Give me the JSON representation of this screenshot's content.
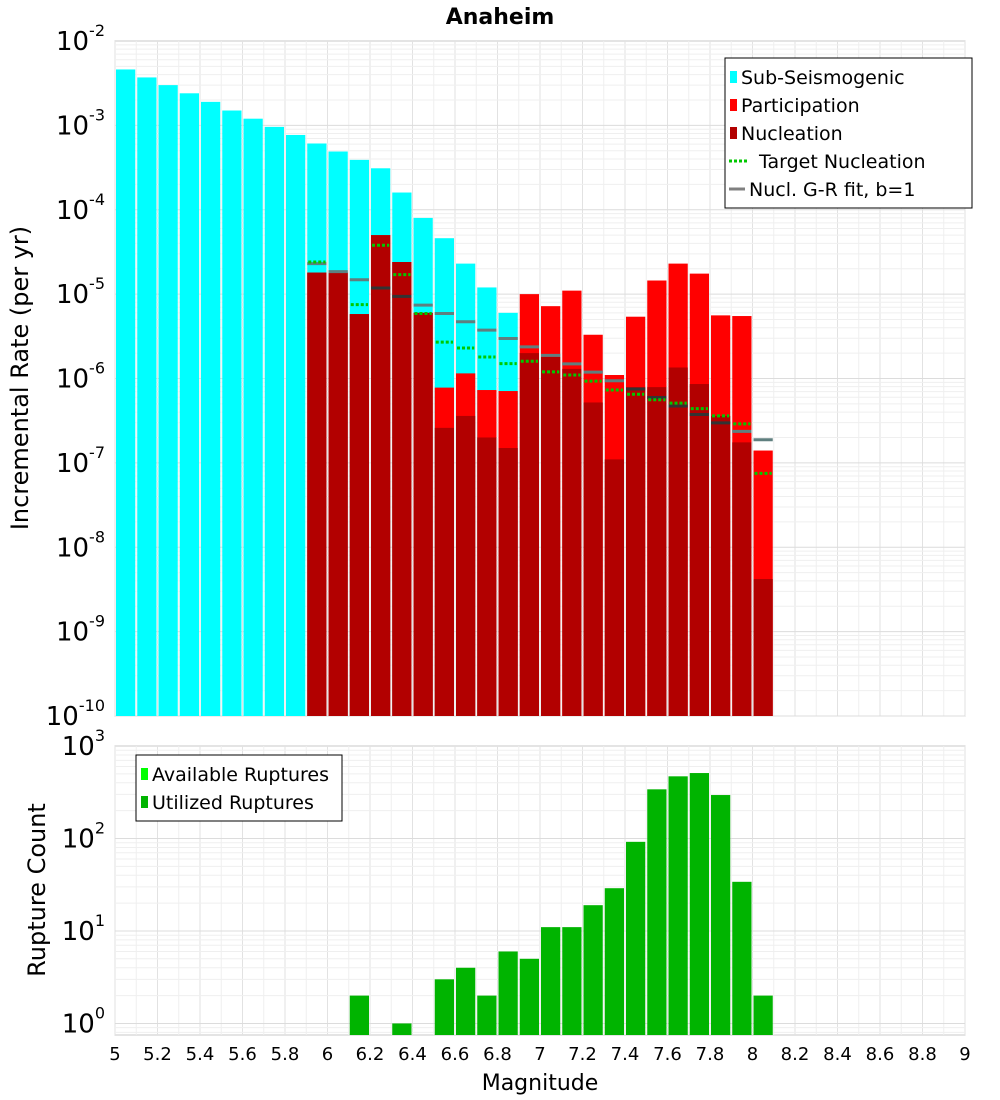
{
  "title": "Anaheim",
  "chart_data": [
    {
      "type": "bar",
      "title": "Anaheim",
      "xlabel": "",
      "ylabel": "Incremental Rate (per yr)",
      "xlim": [
        5,
        9
      ],
      "ylim": [
        1e-10,
        0.01
      ],
      "yscale": "log",
      "grid": true,
      "legend_position": "top-right",
      "y_ticks": [
        {
          "base": "10",
          "exp": "-10"
        },
        {
          "base": "10",
          "exp": "-9"
        },
        {
          "base": "10",
          "exp": "-8"
        },
        {
          "base": "10",
          "exp": "-7"
        },
        {
          "base": "10",
          "exp": "-6"
        },
        {
          "base": "10",
          "exp": "-5"
        },
        {
          "base": "10",
          "exp": "-4"
        },
        {
          "base": "10",
          "exp": "-3"
        },
        {
          "base": "10",
          "exp": "-2"
        }
      ],
      "legend": [
        {
          "label": "Sub-Seismogenic",
          "color": "#00ffff",
          "kind": "square"
        },
        {
          "label": "Participation",
          "color": "#ff0000",
          "kind": "square"
        },
        {
          "label": "Nucleation",
          "color": "#b20000",
          "kind": "square"
        },
        {
          "label": "Target Nucleation",
          "color": "#00c800",
          "kind": "dotted"
        },
        {
          "label": "Nucl. G-R fit, b=1",
          "color": "#808080",
          "kind": "line"
        }
      ],
      "bin_width": 0.1,
      "series": [
        {
          "name": "Sub-Seismogenic",
          "color": "#00ffff",
          "x": [
            5.05,
            5.15,
            5.25,
            5.35,
            5.45,
            5.55,
            5.65,
            5.75,
            5.85,
            5.95,
            6.05,
            6.15,
            6.25,
            6.35,
            6.45,
            6.55,
            6.65,
            6.75,
            6.85
          ],
          "values": [
            0.0046,
            0.0037,
            0.003,
            0.0024,
            0.0019,
            0.0015,
            0.0012,
            0.00096,
            0.00077,
            0.00061,
            0.00049,
            0.00039,
            0.00031,
            0.00016,
            8e-05,
            4.6e-05,
            2.3e-05,
            1.2e-05,
            6e-06
          ]
        },
        {
          "name": "Participation",
          "color": "#ff0000",
          "x": [
            5.95,
            6.05,
            6.15,
            6.25,
            6.35,
            6.45,
            6.55,
            6.65,
            6.75,
            6.85,
            6.95,
            7.05,
            7.15,
            7.25,
            7.35,
            7.45,
            7.55,
            7.65,
            7.75,
            7.85,
            7.95,
            8.05
          ],
          "values": [
            1.8e-05,
            1.8e-05,
            5.8e-06,
            5e-05,
            2.4e-05,
            6e-06,
            7.8e-07,
            1.15e-06,
            7.3e-07,
            7.1e-07,
            1e-05,
            7.2e-06,
            1.1e-05,
            3.3e-06,
            1.1e-06,
            5.4e-06,
            1.45e-05,
            2.3e-05,
            1.75e-05,
            5.6e-06,
            5.5e-06,
            1.4e-07
          ]
        },
        {
          "name": "Nucleation",
          "color": "#b20000",
          "x": [
            5.95,
            6.05,
            6.15,
            6.25,
            6.35,
            6.45,
            6.55,
            6.65,
            6.75,
            6.85,
            6.95,
            7.05,
            7.15,
            7.25,
            7.35,
            7.45,
            7.55,
            7.65,
            7.75,
            7.85,
            7.95,
            8.05
          ],
          "values": [
            1.8e-05,
            1.8e-05,
            5.8e-06,
            5e-05,
            2.4e-05,
            6e-06,
            2.6e-07,
            3.6e-07,
            2e-07,
            1.5e-07,
            2e-06,
            1.8e-06,
            1.3e-06,
            5.2e-07,
            1.1e-07,
            7.9e-07,
            7.9e-07,
            1.35e-06,
            8.6e-07,
            3.6e-07,
            1.75e-07,
            4.2e-09
          ]
        },
        {
          "name": "Target Nucleation",
          "color": "#00c800",
          "x": [
            5.95,
            6.05,
            6.15,
            6.25,
            6.35,
            6.45,
            6.55,
            6.65,
            6.75,
            6.85,
            6.95,
            7.05,
            7.15,
            7.25,
            7.35,
            7.45,
            7.55,
            7.65,
            7.75,
            7.85,
            7.95,
            8.05
          ],
          "values": [
            2.4e-05,
            null,
            7.5e-06,
            3.8e-05,
            1.7e-05,
            5.9e-06,
            2.7e-06,
            2.3e-06,
            1.8e-06,
            1.5e-06,
            1.6e-06,
            1.2e-06,
            1.1e-06,
            9.3e-07,
            7.3e-07,
            6.5e-07,
            5.6e-07,
            5.1e-07,
            4.4e-07,
            3.6e-07,
            2.9e-07,
            7.5e-08
          ]
        },
        {
          "name": "Nucl. G-R fit, b=1",
          "color": "#808080",
          "x": [
            5.95,
            6.05,
            6.15,
            6.25,
            6.35,
            6.45,
            6.55,
            6.65,
            6.75,
            6.85,
            6.95,
            7.05,
            7.15,
            7.25,
            7.35,
            7.45,
            7.55,
            7.65,
            7.75,
            7.85,
            7.95,
            8.05
          ],
          "values": [
            2.3e-05,
            1.85e-05,
            1.48e-05,
            1.18e-05,
            9.4e-06,
            7.4e-06,
            5.9e-06,
            4.7e-06,
            3.75e-06,
            2.98e-06,
            2.37e-06,
            1.88e-06,
            1.49e-06,
            1.19e-06,
            9.4e-07,
            7.5e-07,
            5.95e-07,
            4.72e-07,
            3.75e-07,
            2.98e-07,
            2.36e-07,
            1.88e-07
          ]
        }
      ]
    },
    {
      "type": "bar",
      "title": "",
      "xlabel": "Magnitude",
      "ylabel": "Rupture Count",
      "xlim": [
        5,
        9
      ],
      "ylim": [
        0.75,
        1000
      ],
      "yscale": "log",
      "grid": true,
      "legend_position": "top-left",
      "x_ticks": [
        "5",
        "5.2",
        "5.4",
        "5.6",
        "5.8",
        "6",
        "6.2",
        "6.4",
        "6.6",
        "6.8",
        "7",
        "7.2",
        "7.4",
        "7.6",
        "7.8",
        "8",
        "8.2",
        "8.4",
        "8.6",
        "8.8",
        "9"
      ],
      "y_ticks": [
        {
          "base": "10",
          "exp": "0"
        },
        {
          "base": "10",
          "exp": "1"
        },
        {
          "base": "10",
          "exp": "2"
        },
        {
          "base": "10",
          "exp": "3"
        }
      ],
      "legend": [
        {
          "label": "Available Ruptures",
          "color": "#00ff00",
          "kind": "square"
        },
        {
          "label": "Utilized Ruptures",
          "color": "#00b400",
          "kind": "square"
        }
      ],
      "bin_width": 0.1,
      "series": [
        {
          "name": "Utilized Ruptures",
          "color": "#00b400",
          "x": [
            6.15,
            6.35,
            6.55,
            6.65,
            6.75,
            6.85,
            6.95,
            7.05,
            7.15,
            7.25,
            7.35,
            7.45,
            7.55,
            7.65,
            7.75,
            7.85,
            7.95,
            8.05
          ],
          "values": [
            2,
            1,
            3,
            4,
            2,
            6,
            5,
            11,
            11,
            19,
            29,
            92,
            340,
            470,
            510,
            295,
            34,
            2
          ]
        }
      ]
    }
  ]
}
